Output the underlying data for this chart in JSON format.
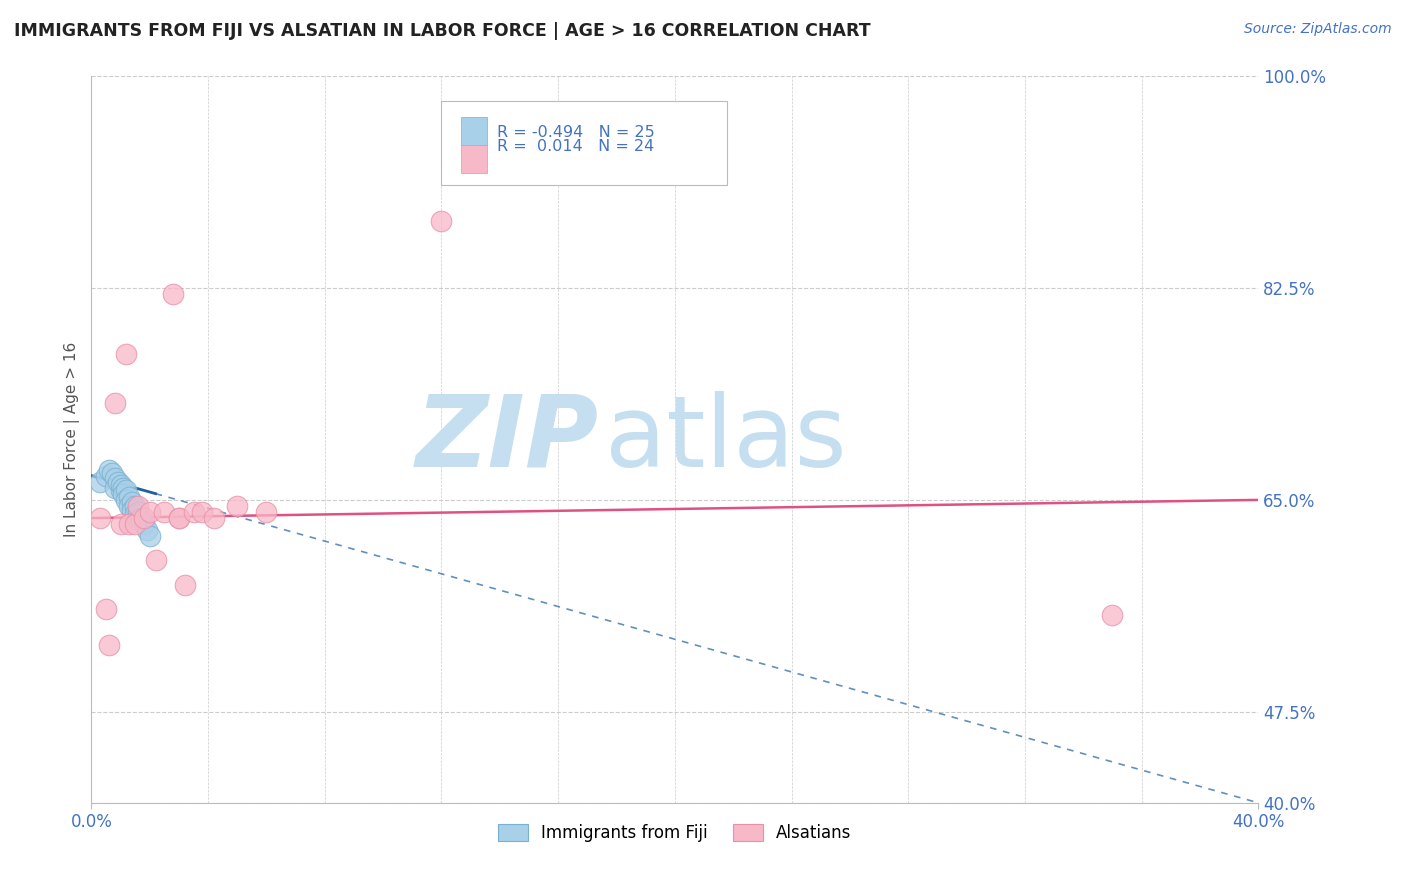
{
  "title": "IMMIGRANTS FROM FIJI VS ALSATIAN IN LABOR FORCE | AGE > 16 CORRELATION CHART",
  "source_text": "Source: ZipAtlas.com",
  "ylabel": "In Labor Force | Age > 16",
  "xlim": [
    0.0,
    0.4
  ],
  "ylim": [
    0.4,
    1.0
  ],
  "xtick_labels": [
    "0.0%",
    "40.0%"
  ],
  "ytick_values": [
    0.4,
    0.475,
    0.65,
    0.825,
    1.0
  ],
  "ytick_labels": [
    "40.0%",
    "47.5%",
    "65.0%",
    "82.5%",
    "100.0%"
  ],
  "fiji_color": "#a8d0e8",
  "alsatian_color": "#f7b8c8",
  "fiji_edge_color": "#7ab0d0",
  "alsatian_edge_color": "#e890a8",
  "trendline_fiji_color": "#2060a0",
  "trendline_alsatian_color": "#e05080",
  "background_color": "#ffffff",
  "grid_color": "#cccccc",
  "title_color": "#222222",
  "source_color": "#4472C4",
  "tick_color": "#4472C4",
  "axis_label_color": "#555555",
  "legend_text_color": "#4472C4",
  "fiji_x": [
    0.003,
    0.005,
    0.006,
    0.007,
    0.008,
    0.008,
    0.009,
    0.01,
    0.01,
    0.011,
    0.011,
    0.012,
    0.012,
    0.013,
    0.013,
    0.014,
    0.014,
    0.015,
    0.015,
    0.016,
    0.016,
    0.017,
    0.018,
    0.019,
    0.02
  ],
  "fiji_y": [
    0.665,
    0.67,
    0.675,
    0.672,
    0.668,
    0.66,
    0.665,
    0.658,
    0.662,
    0.66,
    0.655,
    0.658,
    0.65,
    0.652,
    0.645,
    0.648,
    0.642,
    0.645,
    0.638,
    0.64,
    0.633,
    0.635,
    0.63,
    0.625,
    0.62
  ],
  "alsatian_x": [
    0.003,
    0.005,
    0.006,
    0.008,
    0.01,
    0.012,
    0.013,
    0.015,
    0.016,
    0.018,
    0.02,
    0.022,
    0.025,
    0.028,
    0.03,
    0.03,
    0.032,
    0.035,
    0.038,
    0.042,
    0.05,
    0.06,
    0.12,
    0.35
  ],
  "alsatian_y": [
    0.635,
    0.56,
    0.53,
    0.73,
    0.63,
    0.77,
    0.63,
    0.63,
    0.645,
    0.635,
    0.64,
    0.6,
    0.64,
    0.82,
    0.635,
    0.635,
    0.58,
    0.64,
    0.64,
    0.635,
    0.645,
    0.64,
    0.88,
    0.555
  ],
  "fiji_trend_x0": 0.0,
  "fiji_trend_x1": 0.4,
  "fiji_trend_y0": 0.67,
  "fiji_trend_y1": 0.4,
  "alsatian_trend_x0": 0.0,
  "alsatian_trend_x1": 0.4,
  "alsatian_trend_y0": 0.635,
  "alsatian_trend_y1": 0.65,
  "watermark_zip_color": "#c5dff0",
  "watermark_atlas_color": "#c5dff0"
}
